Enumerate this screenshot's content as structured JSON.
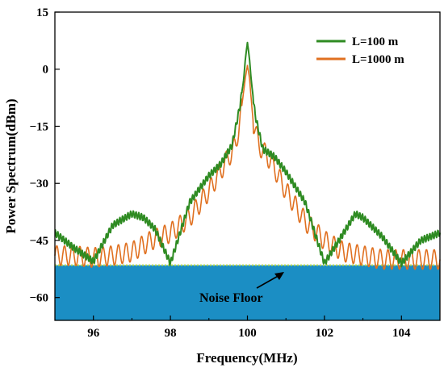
{
  "chart_data": {
    "type": "line",
    "xlabel": "Frequency(MHz)",
    "ylabel": "Power Spectrum(dBm)",
    "xlim": [
      95,
      105
    ],
    "ylim": [
      -66,
      15
    ],
    "xticks": [
      96,
      98,
      100,
      102,
      104
    ],
    "yticks": [
      15,
      0,
      -15,
      -30,
      -45,
      -60
    ],
    "legend_position": "top-right",
    "noise_floor": {
      "label": "Noise Floor",
      "level": -51.5,
      "fill_color": "#1b8ec4",
      "line_color": "#b7d94a"
    },
    "series": [
      {
        "name": "L=100 m",
        "color": "#2e8b22",
        "x": [
          95,
          95.5,
          96,
          96.5,
          97,
          97.3,
          97.6,
          98,
          98.5,
          99,
          99.3,
          99.6,
          99.8,
          99.9,
          99.95,
          100,
          100.05,
          100.1,
          100.2,
          100.4,
          100.7,
          101,
          101.5,
          102,
          102.5,
          102.8,
          103,
          103.5,
          104,
          104.5,
          105
        ],
        "y": [
          -43,
          -47,
          -50.5,
          -41,
          -38,
          -39,
          -42,
          -51,
          -35,
          -28,
          -25,
          -20,
          -10,
          -3,
          3,
          7,
          3,
          -3,
          -12,
          -21,
          -23,
          -27,
          -35,
          -51,
          -43,
          -38,
          -39,
          -44,
          -51,
          -45,
          -43
        ]
      },
      {
        "name": "L=1000 m",
        "color": "#e07020",
        "x": [
          95,
          95.5,
          96,
          96.5,
          97,
          97.5,
          98,
          98.5,
          99,
          99.4,
          99.7,
          99.85,
          99.95,
          100,
          100.05,
          100.15,
          100.3,
          100.6,
          101,
          101.5,
          102,
          102.5,
          103,
          103.5,
          104,
          104.5,
          105
        ],
        "y": [
          -49,
          -49,
          -49.5,
          -49,
          -48,
          -45,
          -43,
          -39,
          -32,
          -25,
          -20,
          -10,
          -2,
          1,
          -2,
          -14,
          -20,
          -24,
          -32,
          -40,
          -45,
          -48,
          -49,
          -50,
          -50,
          -50,
          -50
        ]
      }
    ]
  }
}
